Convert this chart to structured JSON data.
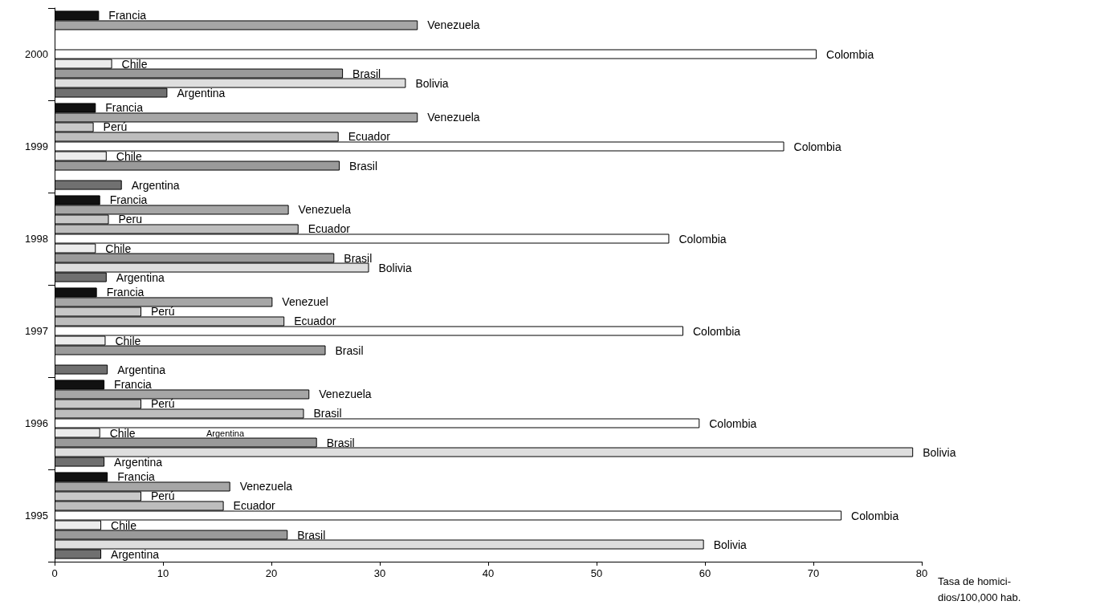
{
  "chart_data": {
    "type": "bar",
    "orientation": "horizontal",
    "categories": [
      "2000",
      "1999",
      "1998",
      "1997",
      "1996",
      "1995"
    ],
    "xlabel": "Tasa de homici-\ndios/100,000 hab.",
    "xlim": [
      0,
      80
    ],
    "xticks": [
      0,
      10,
      20,
      30,
      40,
      50,
      60,
      70,
      80
    ],
    "grid": false,
    "series": [
      {
        "color": "#111111",
        "values": [
          4.1,
          3.8,
          4.2,
          3.9,
          4.6,
          4.9
        ],
        "value_labels": [
          "Francia",
          "Francia",
          "Francia",
          "Francia",
          "Francia",
          "Francia"
        ]
      },
      {
        "color": "#a6a6a6",
        "values": [
          33.5,
          33.5,
          21.6,
          20.1,
          23.5,
          16.2
        ],
        "value_labels": [
          "Venezuela",
          "Venezuela",
          "Venezuela",
          "Venezuel",
          "Venezuela",
          "Venezuela"
        ]
      },
      {
        "color": "#c8c8c8",
        "values": [
          null,
          3.6,
          5.0,
          8.0,
          8.0,
          8.0
        ],
        "value_labels": [
          null,
          "Perú",
          "Peru",
          "Perú",
          "Perú",
          "Perú"
        ]
      },
      {
        "color": "#bdbdbd",
        "values": [
          null,
          26.2,
          22.5,
          21.2,
          23.0,
          15.6
        ],
        "value_labels": [
          null,
          "Ecuador",
          "Ecuador",
          "Ecuador",
          "Brasil",
          "Ecuador"
        ]
      },
      {
        "color": "#ffffff",
        "values": [
          70.3,
          67.3,
          56.7,
          58.0,
          59.5,
          72.6
        ],
        "value_labels": [
          "Colombia",
          "Colombia",
          "Colombia",
          "Colombia",
          "Colombia",
          "Colombia"
        ]
      },
      {
        "color": "#ececec",
        "values": [
          5.3,
          4.8,
          3.8,
          4.7,
          4.2,
          4.3
        ],
        "value_labels": [
          "Chile",
          "Chile",
          "Chile",
          "Chile",
          "Chile",
          "Chile"
        ]
      },
      {
        "color": "#9a9a9a",
        "values": [
          26.6,
          26.3,
          25.8,
          25.0,
          24.2,
          21.5
        ],
        "value_labels": [
          "Brasil",
          "Brasil",
          "Brasil",
          "Brasil",
          "Brasil",
          "Brasil"
        ]
      },
      {
        "color": "#dedede",
        "values": [
          32.4,
          null,
          29.0,
          null,
          79.2,
          59.9
        ],
        "value_labels": [
          "Bolivia",
          null,
          "Bolivia",
          null,
          "Bolivia",
          "Bolivia"
        ]
      },
      {
        "color": "#707070",
        "values": [
          10.4,
          6.2,
          4.8,
          4.9,
          4.6,
          4.3
        ],
        "value_labels": [
          "Argentina",
          "Argentina",
          "Argentina",
          "Argentina",
          "Argentina",
          "Argentina"
        ]
      }
    ],
    "annotations": [
      "Argentina"
    ]
  }
}
